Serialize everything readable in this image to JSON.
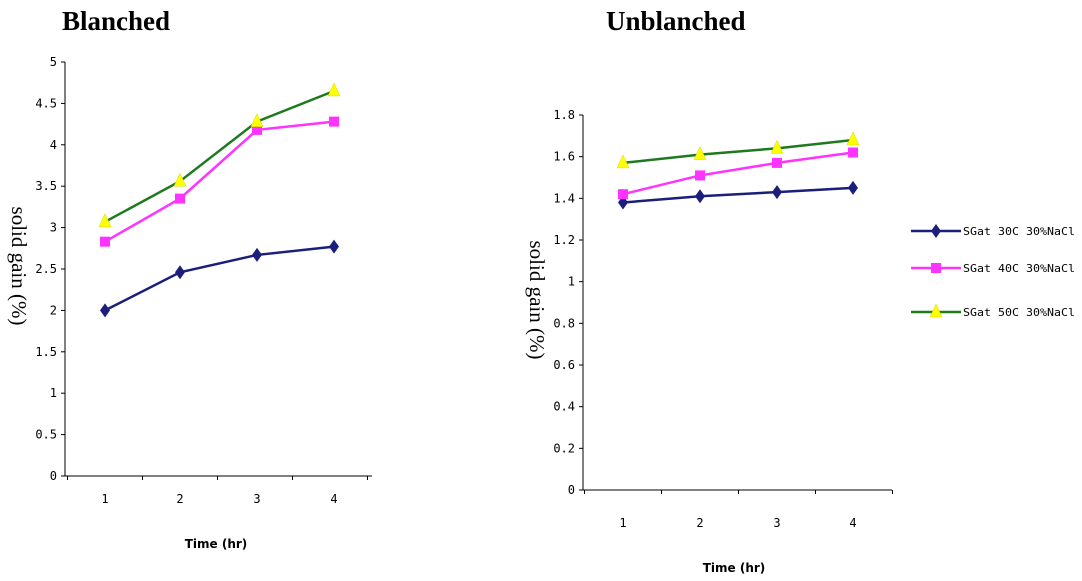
{
  "panels": {
    "left_title": "Blanched",
    "right_title": "Unblanched"
  },
  "legend": {
    "placement": "right",
    "entries": [
      "SGat 30C 30%NaCl",
      "SGat 40C 30%NaCl",
      "SGat 50C 30%NaCl"
    ]
  },
  "colors": {
    "series1": "#1b1f7a",
    "series2": "#ff33ff",
    "series3": "#1f7a1f",
    "series3_marker": "#ffff00"
  },
  "chart_data": [
    {
      "type": "line",
      "title": "Blanched",
      "xlabel": "Time (hr)",
      "ylabel": "solid gain (%)",
      "x": [
        1,
        2,
        3,
        4
      ],
      "x_tick_labels": [
        "1",
        "2",
        "3",
        "4"
      ],
      "y_tick_labels": [
        "0",
        "0.5",
        "1",
        "1.5",
        "2",
        "2.5",
        "3",
        "3.5",
        "4",
        "4.5",
        "5"
      ],
      "ylim": [
        0,
        5
      ],
      "grid": false,
      "series": [
        {
          "name": "SGat 30C 30%NaCl",
          "values": [
            2.0,
            2.46,
            2.67,
            2.77
          ],
          "marker": "diamond"
        },
        {
          "name": "SGat 40C 30%NaCl",
          "values": [
            2.83,
            3.35,
            4.18,
            4.28
          ],
          "marker": "square"
        },
        {
          "name": "SGat 50C 30%NaCl",
          "values": [
            3.07,
            3.56,
            4.28,
            4.65
          ],
          "marker": "triangle"
        }
      ]
    },
    {
      "type": "line",
      "title": "Unblanched",
      "xlabel": "Time (hr)",
      "ylabel": "solid gain (%)",
      "x": [
        1,
        2,
        3,
        4
      ],
      "x_tick_labels": [
        "1",
        "2",
        "3",
        "4"
      ],
      "y_tick_labels": [
        "0",
        "0.2",
        "0.4",
        "0.6",
        "0.8",
        "1",
        "1.2",
        "1.4",
        "1.6",
        "1.8"
      ],
      "ylim": [
        0,
        1.8
      ],
      "grid": false,
      "series": [
        {
          "name": "SGat 30C 30%NaCl",
          "values": [
            1.38,
            1.41,
            1.43,
            1.45
          ],
          "marker": "diamond"
        },
        {
          "name": "SGat 40C 30%NaCl",
          "values": [
            1.42,
            1.51,
            1.57,
            1.62
          ],
          "marker": "square"
        },
        {
          "name": "SGat 50C 30%NaCl",
          "values": [
            1.57,
            1.61,
            1.64,
            1.68
          ],
          "marker": "triangle"
        }
      ]
    }
  ]
}
